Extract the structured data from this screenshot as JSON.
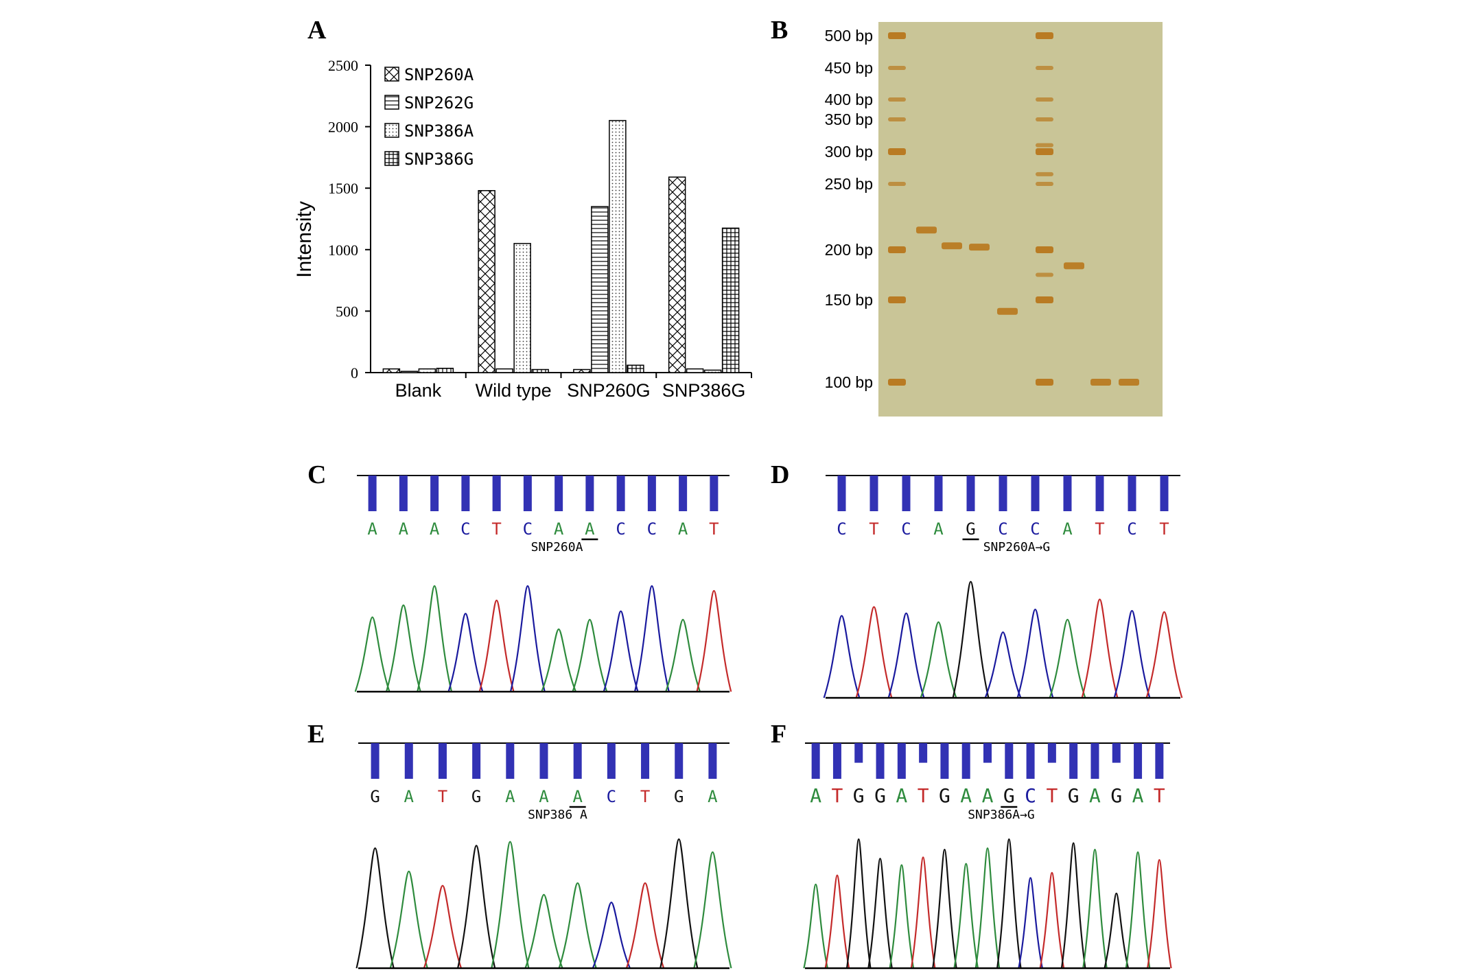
{
  "panels": {
    "a": "A",
    "b": "B",
    "c": "C",
    "d": "D",
    "e": "E",
    "f": "F"
  },
  "colors": {
    "A": "#2e8b3d",
    "C": "#1a1a9e",
    "G": "#111111",
    "T": "#c42a2a",
    "gel": "#c9c597",
    "band": "#b8771c",
    "sequencer_bar": "#3232b4"
  },
  "chart_data": [
    {
      "type": "bar",
      "panel": "A",
      "categories": [
        "Blank",
        "Wild type",
        "SNP260G",
        "SNP386G"
      ],
      "series": [
        {
          "name": "SNP260A",
          "pattern": "crosshatch-diagonal",
          "values": [
            30,
            1480,
            25,
            1590
          ]
        },
        {
          "name": "SNP262G",
          "pattern": "horizontal-lines",
          "values": [
            10,
            30,
            1350,
            30
          ]
        },
        {
          "name": "SNP386A",
          "pattern": "dots",
          "values": [
            30,
            1050,
            2050,
            20
          ]
        },
        {
          "name": "SNP386G",
          "pattern": "grid",
          "values": [
            35,
            25,
            60,
            1175
          ]
        }
      ],
      "ylabel": "Intensity",
      "yticks": [
        0,
        500,
        1000,
        1500,
        2000,
        2500
      ],
      "ylim": [
        0,
        2500
      ],
      "legend_position": "top-left",
      "grid": false
    },
    {
      "type": "gel",
      "panel": "B",
      "ladder_labels": [
        "500 bp",
        "450 bp",
        "400 bp",
        "350 bp",
        "300 bp",
        "250 bp",
        "200 bp",
        "150 bp",
        "100 bp"
      ],
      "ladder_sizes_bp": [
        500,
        450,
        400,
        350,
        300,
        250,
        200,
        150,
        100
      ],
      "sample_bands_bp": [
        {
          "lane": 2,
          "bp": 215
        },
        {
          "lane": 3,
          "bp": 203
        },
        {
          "lane": 4,
          "bp": 202
        },
        {
          "lane": 5,
          "bp": 143
        },
        {
          "lane": 7,
          "bp": 184
        },
        {
          "lane": 8,
          "bp": 94
        },
        {
          "lane": 9,
          "bp": 95
        }
      ]
    }
  ],
  "chromatograms": [
    {
      "panel": "C",
      "bases": [
        "A",
        "A",
        "A",
        "C",
        "T",
        "C",
        "A",
        "A",
        "C",
        "C",
        "A",
        "T"
      ],
      "label": "SNP260A",
      "underline_index": 7
    },
    {
      "panel": "D",
      "bases": [
        "C",
        "T",
        "C",
        "A",
        "G",
        "C",
        "C",
        "A",
        "T",
        "C",
        "T"
      ],
      "label": "SNP260A→G",
      "underline_index": 4
    },
    {
      "panel": "E",
      "bases": [
        "G",
        "A",
        "T",
        "G",
        "A",
        "A",
        "A",
        "C",
        "T",
        "G",
        "A"
      ],
      "label": "SNP386 A",
      "underline_index": 6
    },
    {
      "panel": "F",
      "bases": [
        "A",
        "T",
        "G",
        "G",
        "A",
        "T",
        "G",
        "A",
        "A",
        "G",
        "C",
        "T",
        "G",
        "A",
        "G",
        "A",
        "T"
      ],
      "label": "SNP386A→G",
      "underline_index": 9
    }
  ]
}
